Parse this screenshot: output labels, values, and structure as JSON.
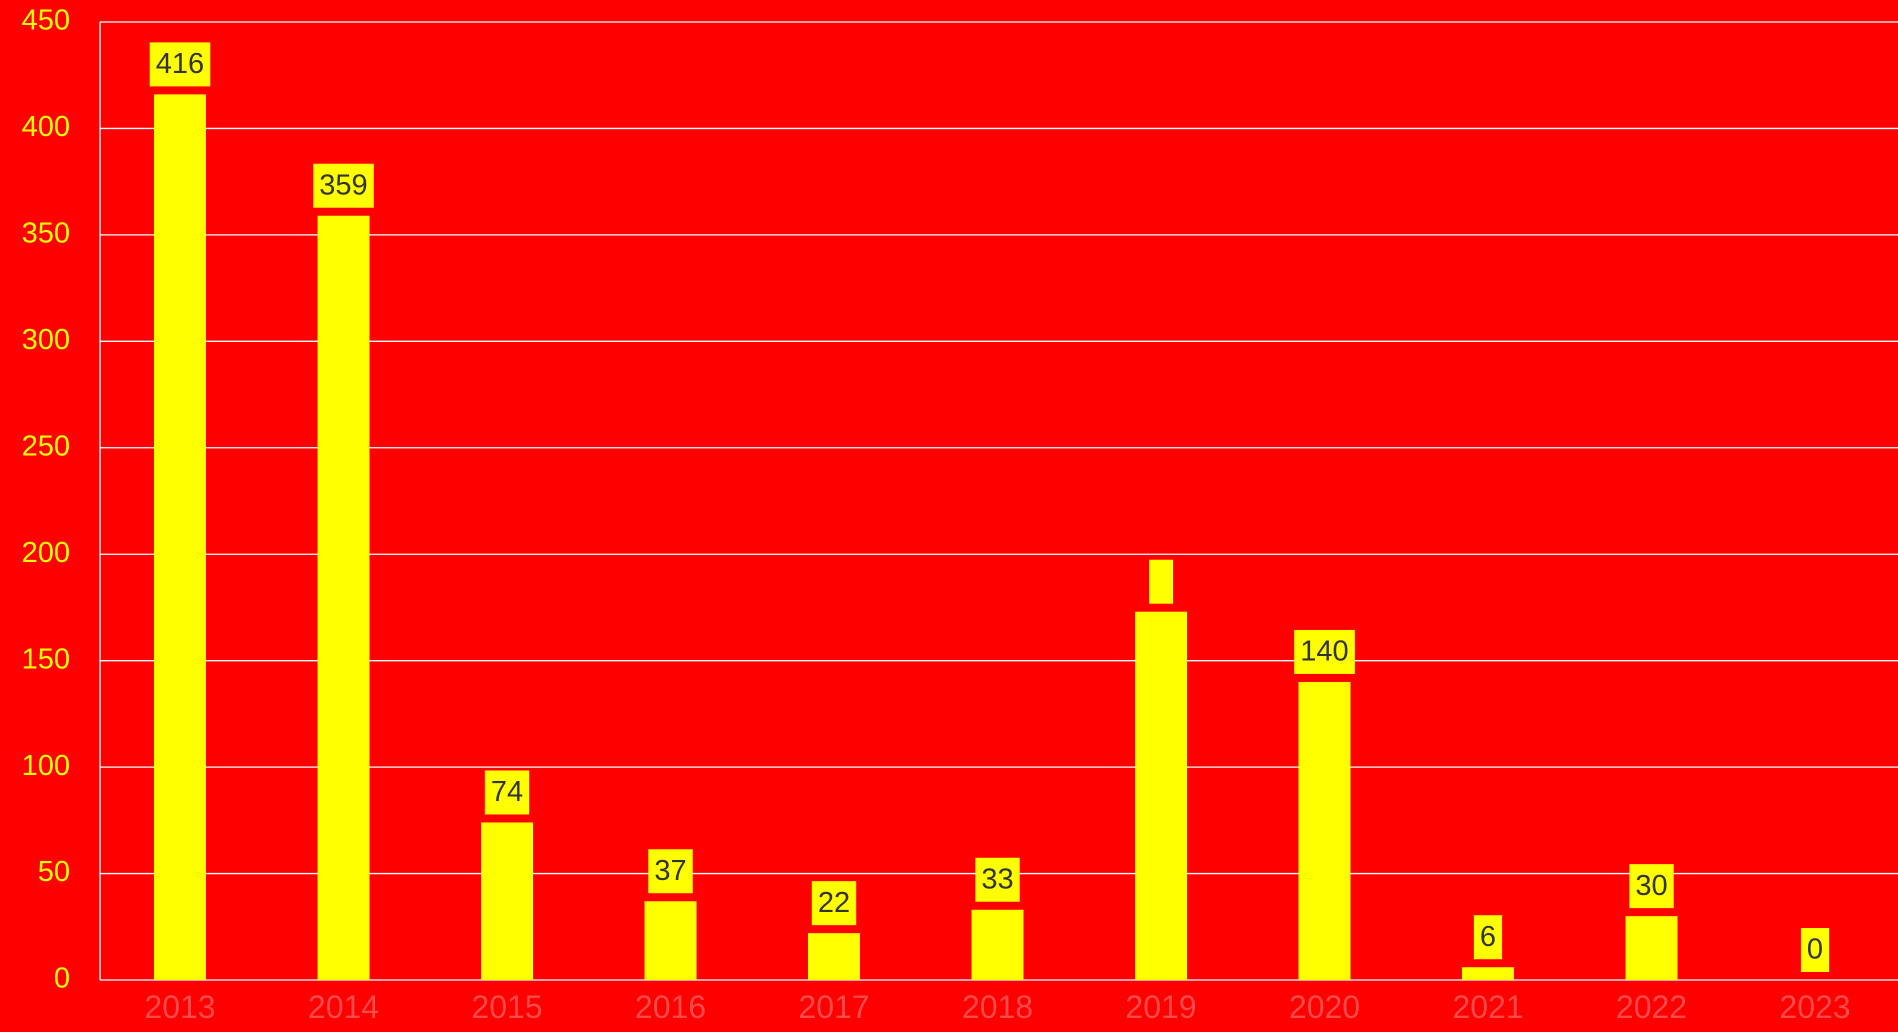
{
  "chart_data": {
    "type": "bar",
    "categories": [
      "2013",
      "2014",
      "2015",
      "2016",
      "2017",
      "2018",
      "2019",
      "2020",
      "2021",
      "2022",
      "2023"
    ],
    "values": [
      416,
      359,
      74,
      37,
      22,
      33,
      173,
      140,
      6,
      30,
      0
    ],
    "data_labels": [
      "416",
      "359",
      "74",
      "37",
      "22",
      "33",
      "",
      "140",
      "6",
      "30",
      "0"
    ],
    "y_ticks": [
      "0",
      "50",
      "100",
      "150",
      "200",
      "250",
      "300",
      "350",
      "400",
      "450"
    ],
    "ylim": [
      0,
      450
    ],
    "grid": true,
    "title": "",
    "xlabel": "",
    "ylabel": "",
    "colors": {
      "background": "#FF0000",
      "bar": "#FFFF00",
      "label_box": "#FFFF00",
      "label_text": "#333333",
      "axis_text": "#FFFF00",
      "category_text": "#FF4A4A",
      "grid": "#FFFFFF"
    }
  }
}
